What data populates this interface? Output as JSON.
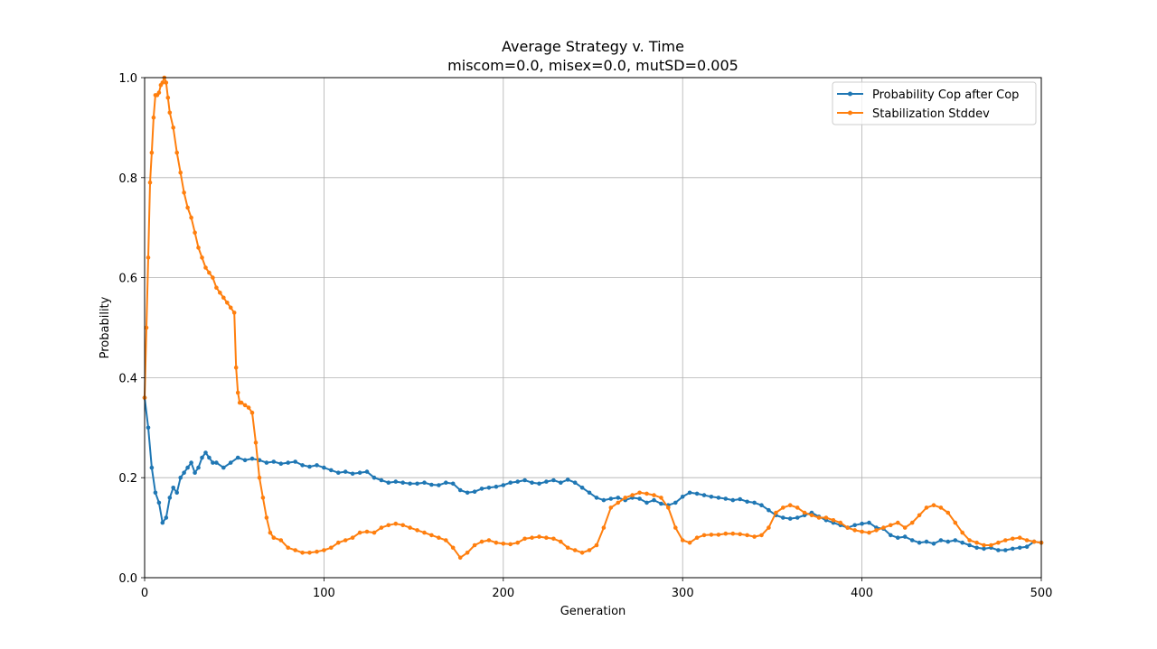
{
  "chart_data": {
    "type": "line",
    "title": "Average Strategy v. Time",
    "subtitle": "miscom=0.0, misex=0.0, mutSD=0.005",
    "xlabel": "Generation",
    "ylabel": "Probability",
    "xlim": [
      0,
      500
    ],
    "ylim": [
      0,
      1.0
    ],
    "xticks": [
      "0",
      "100",
      "200",
      "300",
      "400",
      "500"
    ],
    "yticks": [
      "0.0",
      "0.2",
      "0.4",
      "0.6",
      "0.8",
      "1.0"
    ],
    "grid": true,
    "legend_position": "top-right",
    "series": [
      {
        "name": "Probability Cop after Cop",
        "color": "#1f77b4",
        "x": [
          0,
          2,
          4,
          6,
          8,
          10,
          12,
          14,
          16,
          18,
          20,
          22,
          24,
          26,
          28,
          30,
          32,
          34,
          36,
          38,
          40,
          44,
          48,
          52,
          56,
          60,
          64,
          68,
          72,
          76,
          80,
          84,
          88,
          92,
          96,
          100,
          104,
          108,
          112,
          116,
          120,
          124,
          128,
          132,
          136,
          140,
          144,
          148,
          152,
          156,
          160,
          164,
          168,
          172,
          176,
          180,
          184,
          188,
          192,
          196,
          200,
          204,
          208,
          212,
          216,
          220,
          224,
          228,
          232,
          236,
          240,
          244,
          248,
          252,
          256,
          260,
          264,
          268,
          272,
          276,
          280,
          284,
          288,
          292,
          296,
          300,
          304,
          308,
          312,
          316,
          320,
          324,
          328,
          332,
          336,
          340,
          344,
          348,
          352,
          356,
          360,
          364,
          368,
          372,
          376,
          380,
          384,
          388,
          392,
          396,
          400,
          404,
          408,
          412,
          416,
          420,
          424,
          428,
          432,
          436,
          440,
          444,
          448,
          452,
          456,
          460,
          464,
          468,
          472,
          476,
          480,
          484,
          488,
          492,
          496,
          500
        ],
        "values": [
          0.36,
          0.3,
          0.22,
          0.17,
          0.15,
          0.11,
          0.12,
          0.16,
          0.18,
          0.17,
          0.2,
          0.21,
          0.22,
          0.23,
          0.21,
          0.22,
          0.24,
          0.25,
          0.24,
          0.23,
          0.23,
          0.22,
          0.23,
          0.24,
          0.235,
          0.238,
          0.235,
          0.23,
          0.232,
          0.228,
          0.23,
          0.232,
          0.225,
          0.222,
          0.225,
          0.22,
          0.215,
          0.21,
          0.212,
          0.208,
          0.21,
          0.212,
          0.2,
          0.195,
          0.19,
          0.192,
          0.19,
          0.188,
          0.188,
          0.19,
          0.186,
          0.185,
          0.19,
          0.188,
          0.175,
          0.17,
          0.172,
          0.178,
          0.18,
          0.182,
          0.185,
          0.19,
          0.192,
          0.195,
          0.19,
          0.188,
          0.192,
          0.195,
          0.19,
          0.196,
          0.19,
          0.18,
          0.17,
          0.16,
          0.155,
          0.158,
          0.16,
          0.155,
          0.16,
          0.158,
          0.15,
          0.155,
          0.148,
          0.145,
          0.15,
          0.162,
          0.17,
          0.168,
          0.165,
          0.162,
          0.16,
          0.158,
          0.155,
          0.157,
          0.152,
          0.15,
          0.145,
          0.135,
          0.125,
          0.12,
          0.118,
          0.12,
          0.125,
          0.13,
          0.122,
          0.115,
          0.11,
          0.105,
          0.1,
          0.105,
          0.108,
          0.11,
          0.1,
          0.098,
          0.085,
          0.08,
          0.082,
          0.075,
          0.07,
          0.072,
          0.068,
          0.075,
          0.072,
          0.075,
          0.07,
          0.065,
          0.06,
          0.058,
          0.06,
          0.055,
          0.055,
          0.058,
          0.06,
          0.062,
          0.072,
          0.07
        ]
      },
      {
        "name": "Stabilization Stddev",
        "color": "#ff7f0e",
        "x": [
          0,
          1,
          2,
          3,
          4,
          5,
          6,
          7,
          8,
          9,
          10,
          11,
          12,
          13,
          14,
          16,
          18,
          20,
          22,
          24,
          26,
          28,
          30,
          32,
          34,
          36,
          38,
          40,
          42,
          44,
          46,
          48,
          50,
          51,
          52,
          53,
          54,
          56,
          58,
          60,
          62,
          64,
          66,
          68,
          70,
          72,
          76,
          80,
          84,
          88,
          92,
          96,
          100,
          104,
          108,
          112,
          116,
          120,
          124,
          128,
          132,
          136,
          140,
          144,
          148,
          152,
          156,
          160,
          164,
          168,
          172,
          176,
          180,
          184,
          188,
          192,
          196,
          200,
          204,
          208,
          212,
          216,
          220,
          224,
          228,
          232,
          236,
          240,
          244,
          248,
          252,
          256,
          260,
          264,
          268,
          272,
          276,
          280,
          284,
          288,
          292,
          296,
          300,
          304,
          308,
          312,
          316,
          320,
          324,
          328,
          332,
          336,
          340,
          344,
          348,
          352,
          356,
          360,
          364,
          368,
          372,
          376,
          380,
          384,
          388,
          392,
          396,
          400,
          404,
          408,
          412,
          416,
          420,
          424,
          428,
          432,
          436,
          440,
          444,
          448,
          452,
          456,
          460,
          464,
          468,
          472,
          476,
          480,
          484,
          488,
          492,
          496,
          500
        ],
        "values": [
          0.36,
          0.5,
          0.64,
          0.79,
          0.85,
          0.92,
          0.965,
          0.965,
          0.97,
          0.985,
          0.99,
          1.0,
          0.99,
          0.96,
          0.93,
          0.9,
          0.85,
          0.81,
          0.77,
          0.74,
          0.72,
          0.69,
          0.66,
          0.64,
          0.62,
          0.61,
          0.6,
          0.58,
          0.57,
          0.56,
          0.55,
          0.54,
          0.53,
          0.42,
          0.37,
          0.35,
          0.35,
          0.345,
          0.34,
          0.33,
          0.27,
          0.2,
          0.16,
          0.12,
          0.09,
          0.08,
          0.075,
          0.06,
          0.055,
          0.05,
          0.05,
          0.052,
          0.055,
          0.06,
          0.07,
          0.075,
          0.08,
          0.09,
          0.092,
          0.09,
          0.1,
          0.105,
          0.108,
          0.105,
          0.1,
          0.095,
          0.09,
          0.085,
          0.08,
          0.075,
          0.06,
          0.04,
          0.05,
          0.065,
          0.072,
          0.075,
          0.07,
          0.068,
          0.067,
          0.07,
          0.078,
          0.08,
          0.082,
          0.08,
          0.078,
          0.072,
          0.06,
          0.055,
          0.05,
          0.055,
          0.065,
          0.1,
          0.14,
          0.15,
          0.16,
          0.165,
          0.17,
          0.168,
          0.165,
          0.16,
          0.14,
          0.1,
          0.075,
          0.07,
          0.08,
          0.085,
          0.086,
          0.086,
          0.088,
          0.088,
          0.087,
          0.085,
          0.082,
          0.085,
          0.1,
          0.13,
          0.14,
          0.145,
          0.14,
          0.13,
          0.125,
          0.12,
          0.12,
          0.115,
          0.11,
          0.1,
          0.095,
          0.092,
          0.09,
          0.095,
          0.1,
          0.105,
          0.11,
          0.1,
          0.11,
          0.125,
          0.14,
          0.145,
          0.14,
          0.13,
          0.11,
          0.09,
          0.075,
          0.07,
          0.065,
          0.065,
          0.07,
          0.075,
          0.078,
          0.08,
          0.075,
          0.072,
          0.07
        ]
      }
    ]
  }
}
